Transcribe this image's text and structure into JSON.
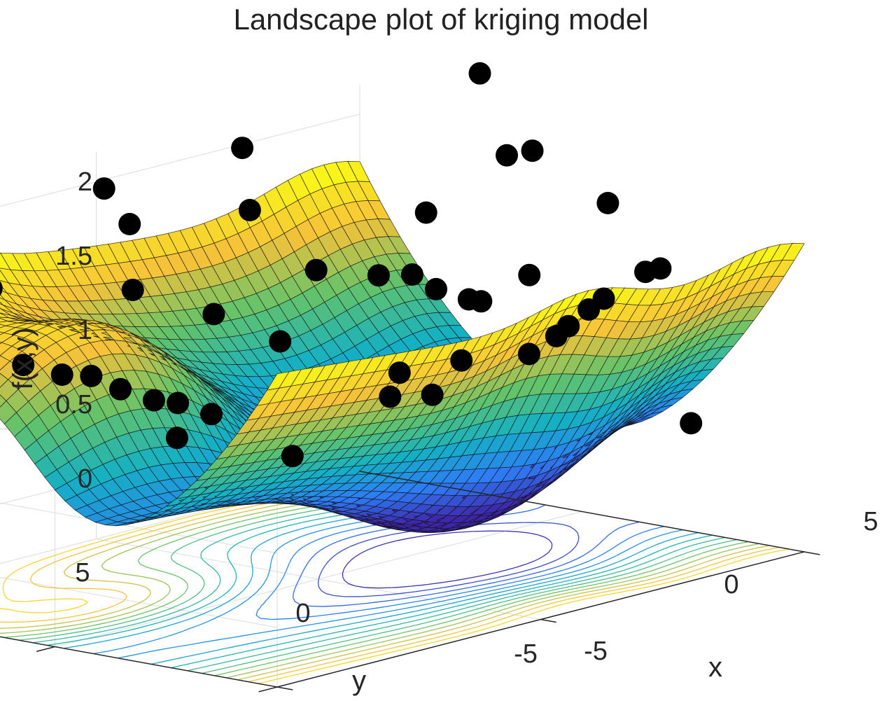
{
  "chart_data": {
    "type": "surface3d",
    "title": "Landscape plot of kriging model",
    "xlabel": "x",
    "ylabel": "y",
    "zlabel": "f(x,y)",
    "xlim": [
      -5,
      5
    ],
    "ylim": [
      -5,
      5
    ],
    "zlim": [
      -0.4,
      2.2
    ],
    "x_ticks": [
      "-5",
      "0",
      "5"
    ],
    "y_ticks": [
      "-5",
      "0",
      "5"
    ],
    "z_ticks": [
      "0",
      "0.5",
      "1",
      "1.5",
      "2"
    ],
    "colormap": [
      "#3e26a8",
      "#2e7cf5",
      "#15b0c4",
      "#63c36a",
      "#f6c23a",
      "#f9fb15"
    ],
    "grid": true,
    "contour_projection": true,
    "sample_points": [
      {
        "x": -4.6,
        "y": 4.4,
        "z": 1.78
      },
      {
        "x": -4.2,
        "y": 4.7,
        "z": 1.75
      },
      {
        "x": -3.8,
        "y": 3.9,
        "z": 1.7
      },
      {
        "x": -3.5,
        "y": 3.6,
        "z": 1.55
      },
      {
        "x": -3.0,
        "y": 3.8,
        "z": 1.62
      },
      {
        "x": -4.0,
        "y": 1.9,
        "z": 1.3
      },
      {
        "x": -3.6,
        "y": 1.5,
        "z": 1.22
      },
      {
        "x": -3.3,
        "y": 1.2,
        "z": 1.2
      },
      {
        "x": -3.0,
        "y": 0.9,
        "z": 1.1
      },
      {
        "x": -2.7,
        "y": 0.5,
        "z": 1.02
      },
      {
        "x": -2.5,
        "y": 0.2,
        "z": 1.0
      },
      {
        "x": -2.2,
        "y": -0.2,
        "z": 0.92
      },
      {
        "x": -2.6,
        "y": 0.1,
        "z": 0.78
      },
      {
        "x": -1.5,
        "y": 2.4,
        "z": 1.55
      },
      {
        "x": -0.8,
        "y": 3.3,
        "z": 1.88
      },
      {
        "x": -1.2,
        "y": 3.4,
        "z": 2.15
      },
      {
        "x": -0.3,
        "y": 2.0,
        "z": 1.3
      },
      {
        "x": 0.2,
        "y": 1.1,
        "z": 1.12
      },
      {
        "x": 0.3,
        "y": 1.9,
        "z": 1.95
      },
      {
        "x": 1.0,
        "y": 2.9,
        "z": 2.25
      },
      {
        "x": 0.8,
        "y": 1.0,
        "z": 1.55
      },
      {
        "x": -1.0,
        "y": -0.6,
        "z": 0.55
      },
      {
        "x": 0.6,
        "y": -0.9,
        "z": 0.82
      },
      {
        "x": 1.2,
        "y": -0.4,
        "z": 0.9
      },
      {
        "x": 1.4,
        "y": -0.9,
        "z": 0.76
      },
      {
        "x": 1.7,
        "y": -1.2,
        "z": 0.98
      },
      {
        "x": 1.9,
        "y": 0.9,
        "z": 1.42
      },
      {
        "x": 2.2,
        "y": 0.5,
        "z": 1.42
      },
      {
        "x": 2.4,
        "y": 0.2,
        "z": 1.32
      },
      {
        "x": 2.6,
        "y": -0.3,
        "z": 1.26
      },
      {
        "x": 2.8,
        "y": 0.9,
        "z": 1.76
      },
      {
        "x": 3.0,
        "y": -0.1,
        "z": 1.2
      },
      {
        "x": 2.9,
        "y": -1.3,
        "z": 0.92
      },
      {
        "x": 3.5,
        "y": -1.2,
        "z": 0.98
      },
      {
        "x": 3.9,
        "y": -1.0,
        "z": 1.0
      },
      {
        "x": 4.0,
        "y": 0.0,
        "z": 1.28
      },
      {
        "x": 4.2,
        "y": -1.1,
        "z": 1.09
      },
      {
        "x": 4.4,
        "y": -1.2,
        "z": 1.15
      },
      {
        "x": 4.2,
        "y": -3.4,
        "z": 0.45
      },
      {
        "x": 4.6,
        "y": -1.9,
        "z": 1.35
      },
      {
        "x": 4.8,
        "y": -2.0,
        "z": 1.36
      },
      {
        "x": 4.9,
        "y": -0.7,
        "z": 1.72
      },
      {
        "x": 4.5,
        "y": 1.1,
        "z": 1.98
      },
      {
        "x": 4.9,
        "y": 1.0,
        "z": 1.98
      },
      {
        "x": 5.0,
        "y": 2.3,
        "z": 2.42
      }
    ]
  }
}
